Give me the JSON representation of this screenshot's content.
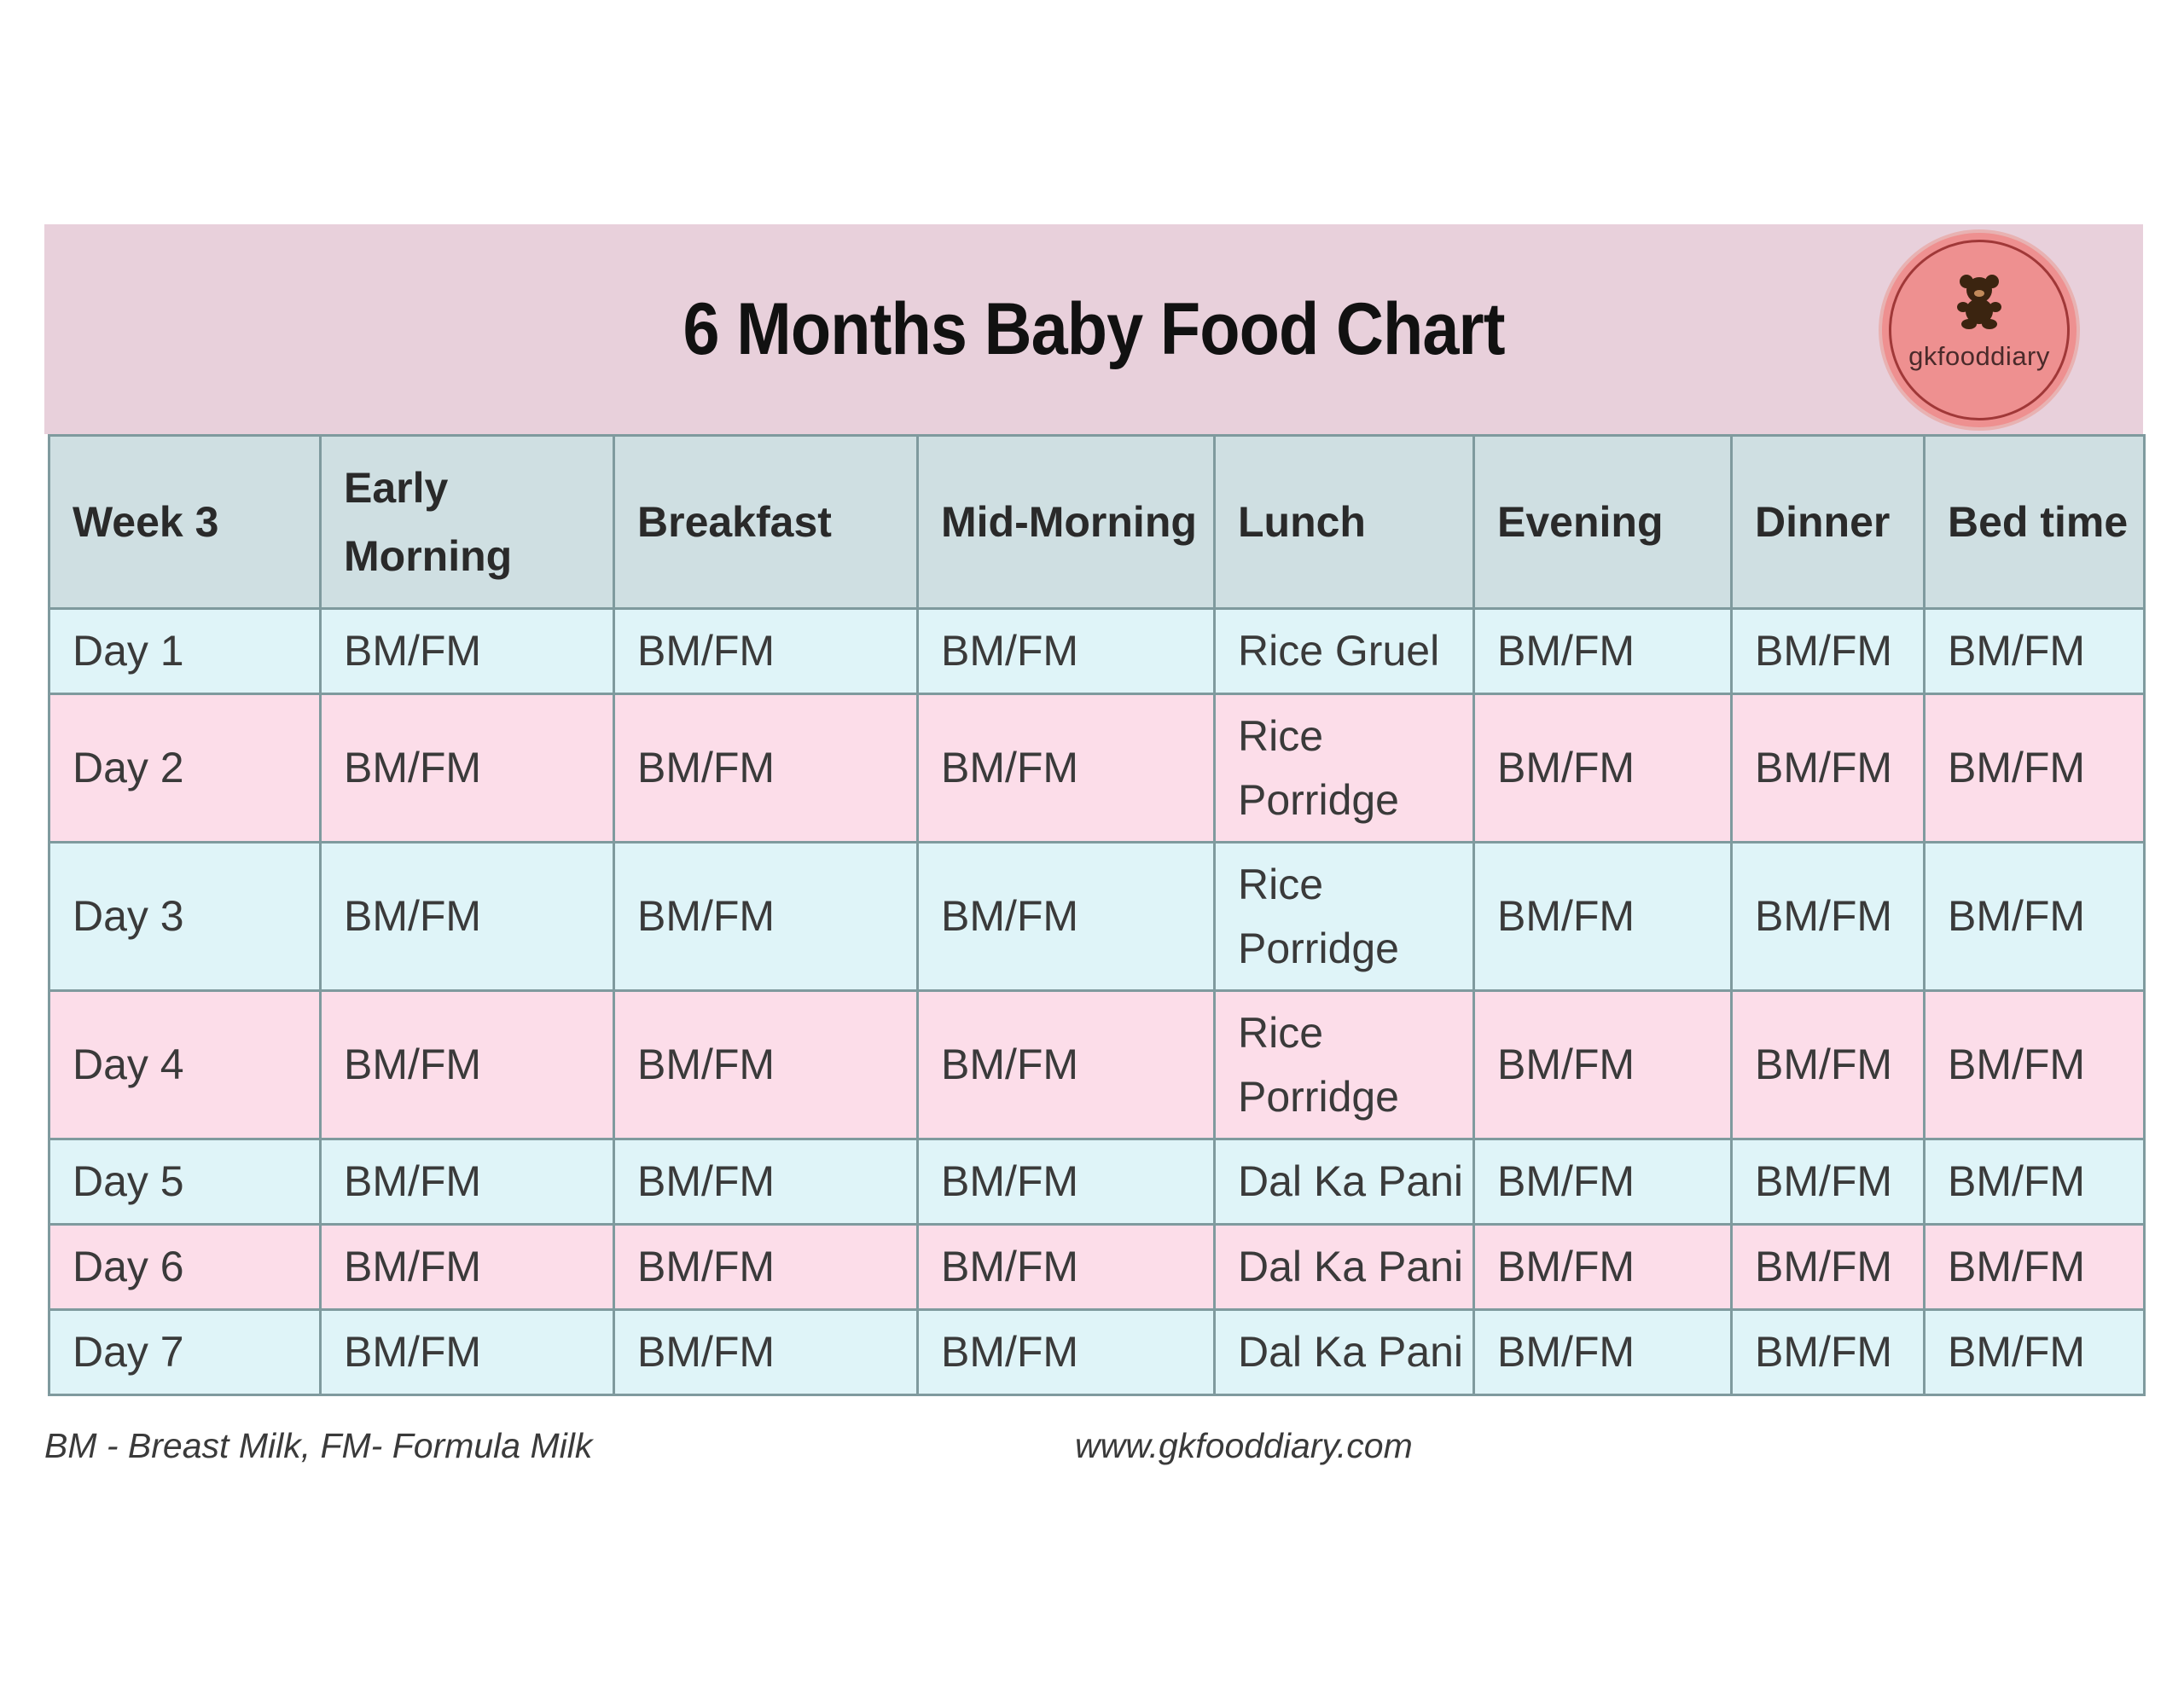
{
  "title": "6 Months Baby Food Chart",
  "logo": {
    "text": "gkfooddiary",
    "icon": "teddy-bear-icon",
    "color": "#ee9090"
  },
  "colors": {
    "title_bg": "#e8d0db",
    "header_bg": "#cfdfe2",
    "row_blue": "#dff4f8",
    "row_pink": "#fcdde9"
  },
  "table": {
    "headers": [
      "Week 3",
      "Early Morning",
      "Breakfast",
      "Mid-Morning",
      "Lunch",
      "Evening",
      "Dinner",
      "Bed time"
    ],
    "rows": [
      [
        "Day 1",
        "BM/FM",
        "BM/FM",
        "BM/FM",
        "Rice Gruel",
        "BM/FM",
        "BM/FM",
        "BM/FM"
      ],
      [
        "Day 2",
        "BM/FM",
        "BM/FM",
        "BM/FM",
        "Rice Porridge",
        "BM/FM",
        "BM/FM",
        "BM/FM"
      ],
      [
        "Day 3",
        "BM/FM",
        "BM/FM",
        "BM/FM",
        "Rice Porridge",
        "BM/FM",
        "BM/FM",
        "BM/FM"
      ],
      [
        "Day 4",
        "BM/FM",
        "BM/FM",
        "BM/FM",
        "Rice Porridge",
        "BM/FM",
        "BM/FM",
        "BM/FM"
      ],
      [
        "Day 5",
        "BM/FM",
        "BM/FM",
        "BM/FM",
        "Dal Ka Pani",
        "BM/FM",
        "BM/FM",
        "BM/FM"
      ],
      [
        "Day 6",
        "BM/FM",
        "BM/FM",
        "BM/FM",
        "Dal Ka Pani",
        "BM/FM",
        "BM/FM",
        "BM/FM"
      ],
      [
        "Day 7",
        "BM/FM",
        "BM/FM",
        "BM/FM",
        "Dal Ka Pani",
        "BM/FM",
        "BM/FM",
        "BM/FM"
      ]
    ]
  },
  "footer": {
    "legend": "BM - Breast Milk, FM- Formula Milk",
    "website": "www.gkfooddiary.com"
  }
}
